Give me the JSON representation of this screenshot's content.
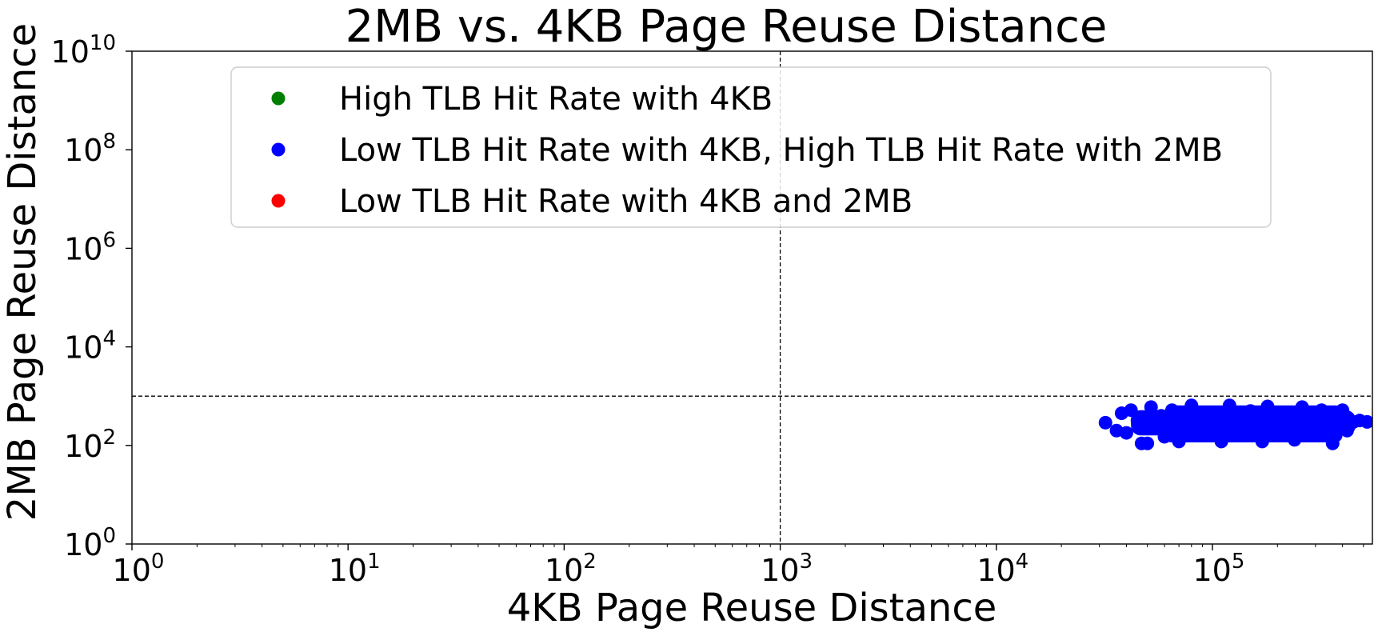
{
  "chart_data": {
    "type": "scatter",
    "title": "2MB vs. 4KB Page Reuse Distance",
    "xlabel": "4KB Page Reuse Distance",
    "ylabel": "2MB Page Reuse Distance",
    "x_scale": "log",
    "y_scale": "log",
    "xlim": [
      1,
      550000
    ],
    "ylim": [
      1,
      10000000000
    ],
    "x_ticks": [
      {
        "value": 1,
        "base": "10",
        "exp": "0"
      },
      {
        "value": 10,
        "base": "10",
        "exp": "1"
      },
      {
        "value": 100,
        "base": "10",
        "exp": "2"
      },
      {
        "value": 1000,
        "base": "10",
        "exp": "3"
      },
      {
        "value": 10000,
        "base": "10",
        "exp": "4"
      },
      {
        "value": 100000,
        "base": "10",
        "exp": "5"
      }
    ],
    "y_ticks": [
      {
        "value": 1,
        "base": "10",
        "exp": "0"
      },
      {
        "value": 100,
        "base": "10",
        "exp": "2"
      },
      {
        "value": 10000,
        "base": "10",
        "exp": "4"
      },
      {
        "value": 1000000,
        "base": "10",
        "exp": "6"
      },
      {
        "value": 100000000,
        "base": "10",
        "exp": "8"
      },
      {
        "value": 10000000000,
        "base": "10",
        "exp": "10"
      }
    ],
    "threshold_lines": {
      "x": 1000,
      "y": 1000
    },
    "grid": false,
    "legend_position": "upper center",
    "series": [
      {
        "name": "High TLB Hit Rate with 4KB",
        "color": "#008000",
        "points": []
      },
      {
        "name": "Low TLB Hit Rate with 4KB, High TLB Hit Rate with 2MB",
        "color": "#0000ff",
        "points": [
          [
            32000,
            290
          ],
          [
            36000,
            200
          ],
          [
            38000,
            450
          ],
          [
            40000,
            180
          ],
          [
            42000,
            520
          ],
          [
            45000,
            320
          ],
          [
            47000,
            110
          ],
          [
            50000,
            110
          ],
          [
            52000,
            600
          ],
          [
            55000,
            240
          ],
          [
            58000,
            400
          ],
          [
            60000,
            150
          ],
          [
            65000,
            520
          ],
          [
            70000,
            120
          ],
          [
            75000,
            300
          ],
          [
            80000,
            650
          ],
          [
            90000,
            200
          ],
          [
            100000,
            420
          ],
          [
            110000,
            120
          ],
          [
            120000,
            650
          ],
          [
            130000,
            280
          ],
          [
            140000,
            160
          ],
          [
            150000,
            500
          ],
          [
            160000,
            350
          ],
          [
            170000,
            120
          ],
          [
            180000,
            620
          ],
          [
            200000,
            220
          ],
          [
            220000,
            450
          ],
          [
            240000,
            130
          ],
          [
            260000,
            600
          ],
          [
            280000,
            300
          ],
          [
            300000,
            180
          ],
          [
            320000,
            520
          ],
          [
            340000,
            240
          ],
          [
            360000,
            110
          ],
          [
            380000,
            400
          ],
          [
            400000,
            520
          ],
          [
            420000,
            200
          ],
          [
            450000,
            300
          ],
          [
            480000,
            320
          ],
          [
            520000,
            300
          ]
        ]
      },
      {
        "name": "Low TLB Hit Rate with 4KB and 2MB",
        "color": "#ff0000",
        "points": []
      }
    ]
  }
}
